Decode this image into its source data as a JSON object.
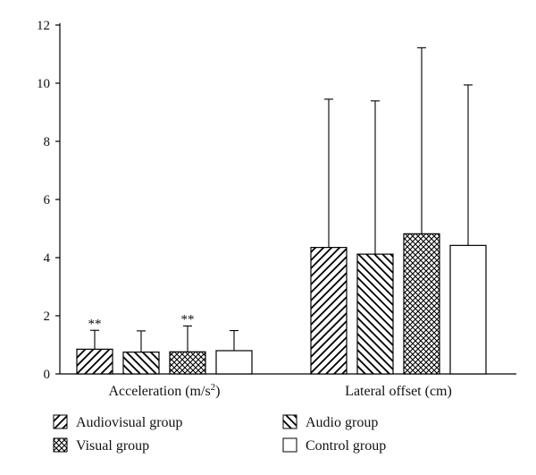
{
  "chart_data": {
    "type": "bar",
    "ylim": [
      0,
      12
    ],
    "yticks": [
      0,
      2,
      4,
      6,
      8,
      10,
      12
    ],
    "categories": [
      {
        "key": "accel",
        "text": "Acceleration (m/s",
        "sup": "2",
        "after": ")"
      },
      {
        "key": "lateral",
        "text": "Lateral offset (cm)",
        "sup": "",
        "after": ""
      }
    ],
    "series": [
      {
        "name": "Audiovisual group",
        "pattern": "diag-right",
        "values": [
          0.85,
          4.35
        ],
        "errors": [
          0.65,
          5.1
        ],
        "sig": [
          "**",
          ""
        ]
      },
      {
        "name": "Audio group",
        "pattern": "diag-left",
        "values": [
          0.75,
          4.12
        ],
        "errors": [
          0.73,
          5.27
        ],
        "sig": [
          "",
          ""
        ]
      },
      {
        "name": "Visual group",
        "pattern": "crosshatch",
        "values": [
          0.76,
          4.82
        ],
        "errors": [
          0.89,
          6.4
        ],
        "sig": [
          "**",
          ""
        ]
      },
      {
        "name": "Control group",
        "pattern": "none",
        "values": [
          0.8,
          4.42
        ],
        "errors": [
          0.69,
          5.52
        ],
        "sig": [
          "",
          ""
        ]
      }
    ],
    "legend_placement": "bottom",
    "grid": false
  }
}
